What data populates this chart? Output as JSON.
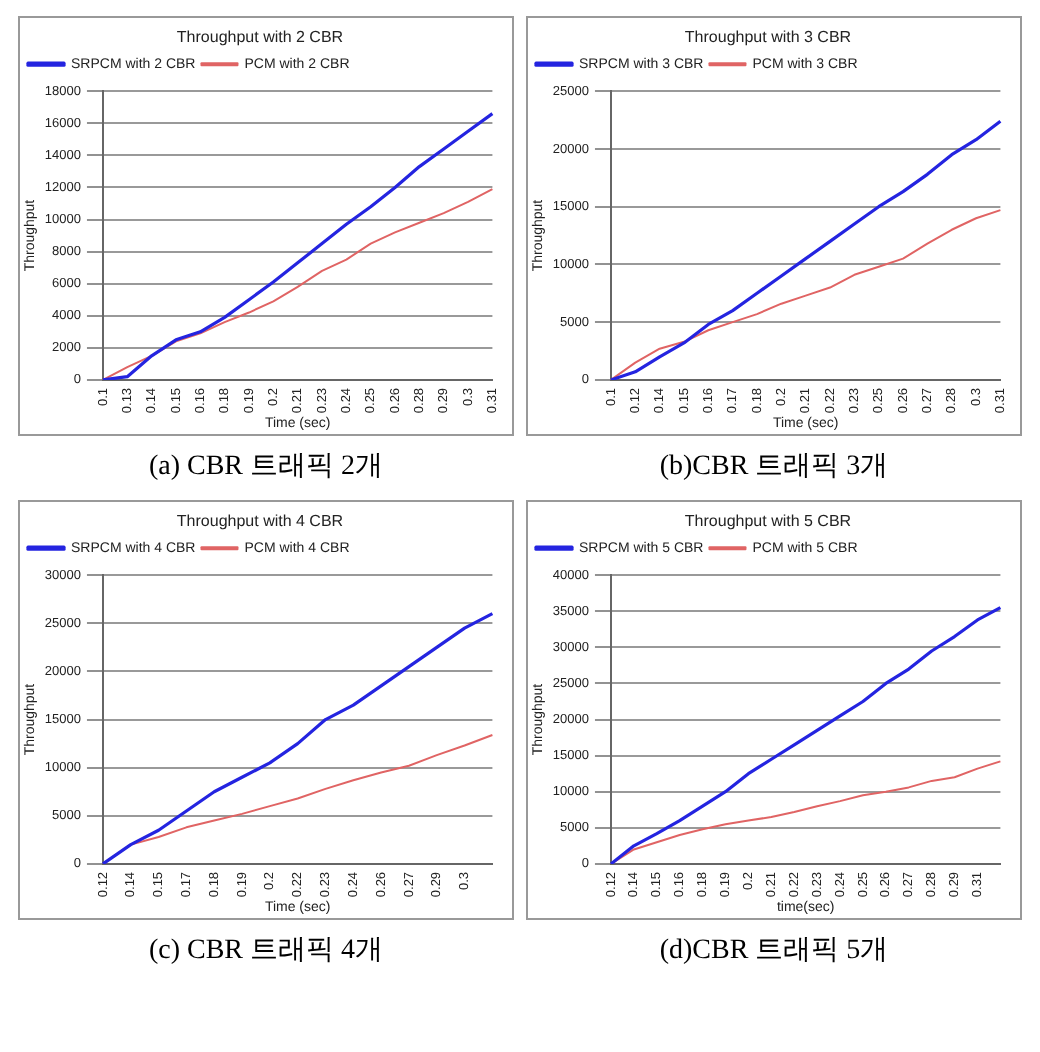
{
  "chart_data": [
    {
      "type": "line",
      "title": "Throughput with 2 CBR",
      "xlabel": "Time (sec)",
      "ylabel": "Throughput",
      "annotations": [
        "(a) CBR 트래픽 2개"
      ],
      "categories": [
        "0.1",
        "0.13",
        "0.14",
        "0.15",
        "0.16",
        "0.18",
        "0.19",
        "0.2",
        "0.21",
        "0.23",
        "0.24",
        "0.25",
        "0.26",
        "0.28",
        "0.29",
        "0.3",
        "0.31"
      ],
      "series": [
        {
          "name": "SRPCM with 2 CBR",
          "color": "#2424e0",
          "values": [
            0,
            200,
            1500,
            2500,
            3000,
            3900,
            5000,
            6100,
            7300,
            8500,
            9700,
            10800,
            12000,
            13300,
            14400,
            15500,
            16600
          ]
        },
        {
          "name": "PCM with 2 CBR",
          "color": "#e06464",
          "values": [
            0,
            800,
            1500,
            2400,
            2900,
            3600,
            4200,
            4900,
            5800,
            6800,
            7500,
            8500,
            9200,
            9800,
            10400,
            11100,
            11900
          ]
        }
      ],
      "ylim": [
        0,
        18000
      ],
      "yticks": [
        0,
        2000,
        4000,
        6000,
        8000,
        10000,
        12000,
        14000,
        16000,
        18000
      ],
      "grid": "y",
      "legend": "top left",
      "marker": "none"
    },
    {
      "type": "line",
      "title": "Throughput with 3 CBR",
      "xlabel": "Time (sec)",
      "ylabel": "Throughput",
      "annotations": [
        "(b)CBR 트래픽 3개"
      ],
      "categories": [
        "0.1",
        "0.12",
        "0.14",
        "0.15",
        "0.16",
        "0.17",
        "0.18",
        "0.2",
        "0.21",
        "0.22",
        "0.23",
        "0.25",
        "0.26",
        "0.27",
        "0.28",
        "0.3",
        "0.31"
      ],
      "series": [
        {
          "name": "SRPCM with 3 CBR",
          "color": "#2424e0",
          "values": [
            0,
            700,
            2000,
            3200,
            4800,
            6000,
            7500,
            9000,
            10500,
            12000,
            13500,
            15000,
            16300,
            17800,
            19500,
            20800,
            22400
          ]
        },
        {
          "name": "PCM with 3 CBR",
          "color": "#e06464",
          "values": [
            0,
            1500,
            2700,
            3300,
            4300,
            5000,
            5700,
            6600,
            7300,
            8000,
            9100,
            9800,
            10500,
            11800,
            13000,
            14000,
            14700
          ]
        }
      ],
      "ylim": [
        0,
        25000
      ],
      "yticks": [
        0,
        5000,
        10000,
        15000,
        20000,
        25000
      ],
      "grid": "y",
      "legend": "top left",
      "marker": "none"
    },
    {
      "type": "line",
      "title": "Throughput with 4 CBR",
      "xlabel": "Time (sec)",
      "ylabel": "Throughput",
      "annotations": [
        "(c) CBR 트래픽 4개"
      ],
      "categories": [
        "0.12",
        "0.14",
        "0.15",
        "0.17",
        "0.18",
        "0.19",
        "0.2",
        "0.22",
        "0.23",
        "0.24",
        "0.26",
        "0.27",
        "0.29",
        "0.3",
        null
      ],
      "series": [
        {
          "name": "SRPCM with 4 CBR",
          "color": "#2424e0",
          "values": [
            0,
            2000,
            3500,
            5500,
            7500,
            9000,
            10500,
            12500,
            15000,
            16500,
            18500,
            20500,
            22500,
            24500,
            26000
          ]
        },
        {
          "name": "PCM with 4 CBR",
          "color": "#e06464",
          "values": [
            0,
            2000,
            2800,
            3800,
            4500,
            5200,
            6000,
            6800,
            7800,
            8700,
            9500,
            10200,
            11300,
            12300,
            13400
          ]
        }
      ],
      "ylim": [
        0,
        30000
      ],
      "yticks": [
        0,
        5000,
        10000,
        15000,
        20000,
        25000,
        30000
      ],
      "grid": "y",
      "legend": "top left",
      "marker": "none"
    },
    {
      "type": "line",
      "title": "Throughput with 5 CBR",
      "xlabel": "time(sec)",
      "ylabel": "Throughput",
      "annotations": [
        "(d)CBR 트래픽 5개"
      ],
      "categories": [
        "0.12",
        "0.14",
        "0.15",
        "0.16",
        "0.18",
        "0.19",
        "0.2",
        "0.21",
        "0.22",
        "0.23",
        "0.24",
        "0.25",
        "0.26",
        "0.27",
        "0.28",
        "0.29",
        "0.31",
        null
      ],
      "series": [
        {
          "name": "SRPCM with 5 CBR",
          "color": "#2424e0",
          "values": [
            0,
            2500,
            4200,
            6000,
            8000,
            10000,
            12500,
            14500,
            16500,
            18500,
            20500,
            22500,
            25000,
            27000,
            29500,
            31500,
            33800,
            35500
          ]
        },
        {
          "name": "PCM with 5 CBR",
          "color": "#e06464",
          "values": [
            0,
            2000,
            3000,
            4000,
            4800,
            5500,
            6000,
            6500,
            7200,
            8000,
            8700,
            9500,
            10000,
            10600,
            11500,
            12000,
            13200,
            14200
          ]
        }
      ],
      "ylim": [
        0,
        40000
      ],
      "yticks": [
        0,
        5000,
        10000,
        15000,
        20000,
        25000,
        30000,
        35000,
        40000
      ],
      "grid": "y",
      "legend": "top left",
      "marker": "none"
    }
  ]
}
